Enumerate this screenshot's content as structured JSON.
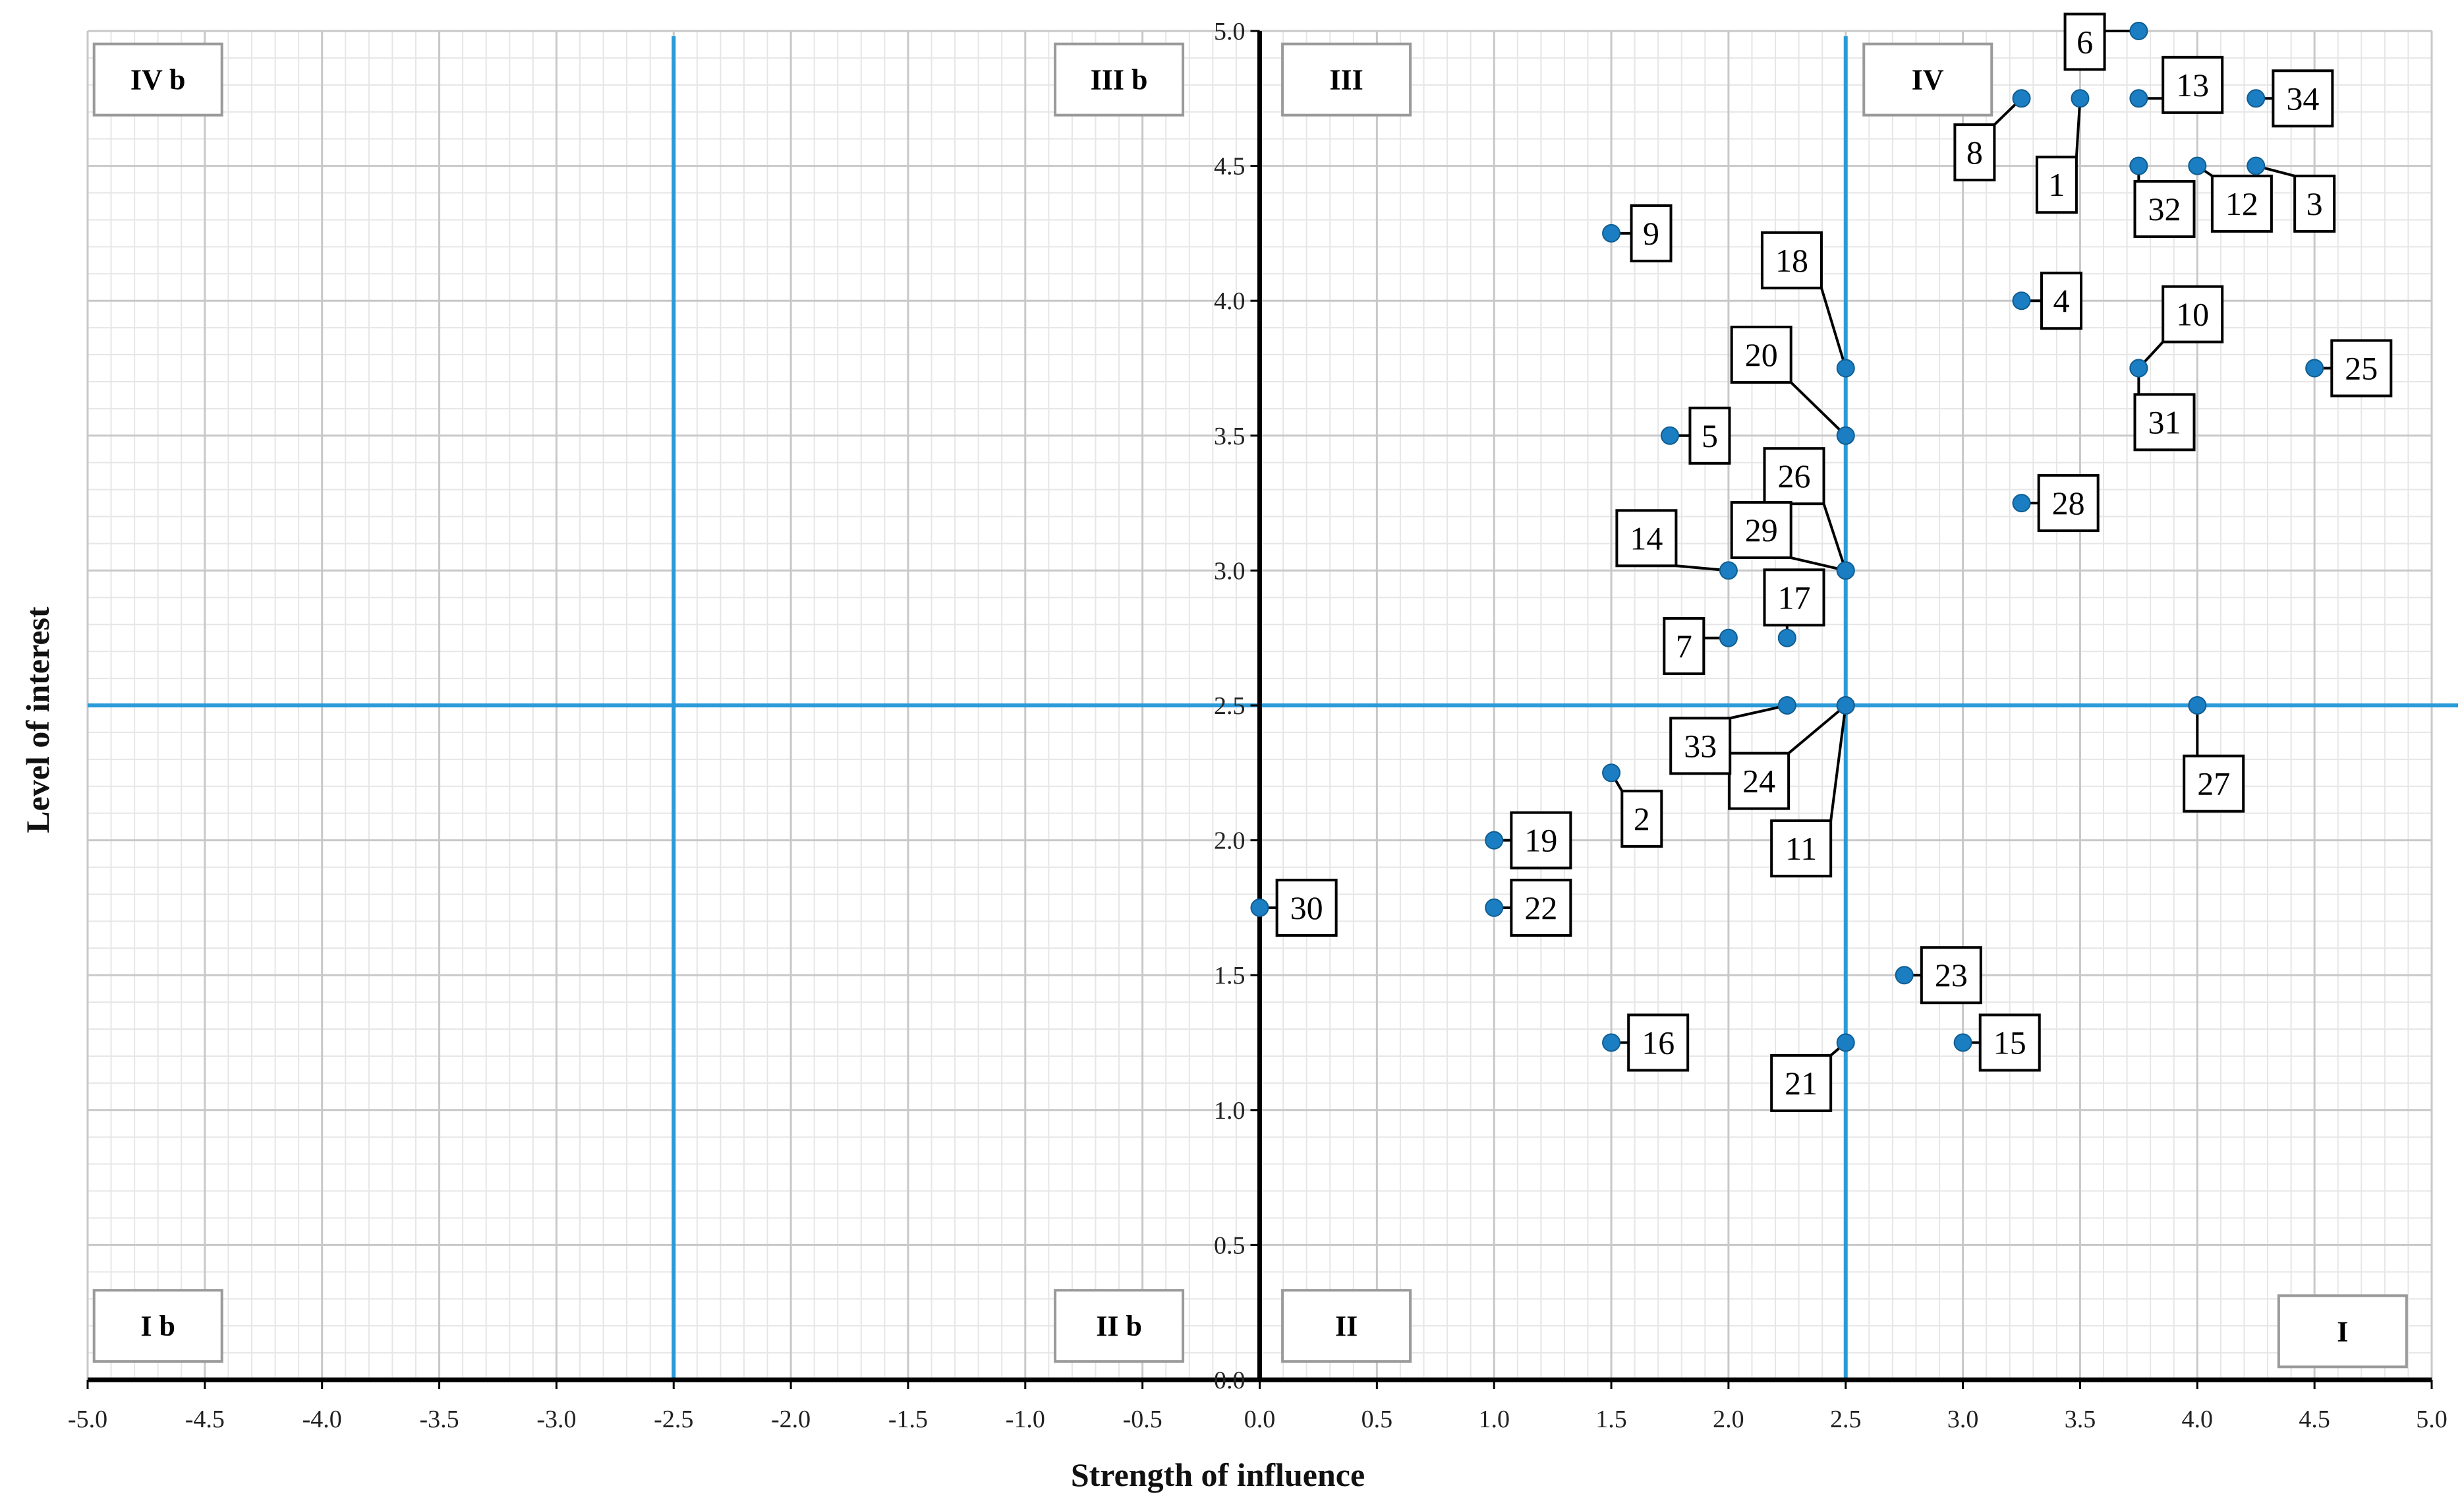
{
  "chart_data": {
    "type": "scatter",
    "xlabel": "Strength of influence",
    "ylabel": "Level of interest",
    "xlim": [
      -5.0,
      5.0
    ],
    "ylim": [
      0.0,
      5.0
    ],
    "x_ticks": [
      "-5.0",
      "-4.5",
      "-4.0",
      "-3.5",
      "-3.0",
      "-2.5",
      "-2.0",
      "-1.5",
      "-1.0",
      "-0.5",
      "0.0",
      "0.5",
      "1.0",
      "1.5",
      "2.0",
      "2.5",
      "3.0",
      "3.5",
      "4.0",
      "4.5",
      "5.0"
    ],
    "y_ticks": [
      "0.0",
      "0.5",
      "1.0",
      "1.5",
      "2.0",
      "2.5",
      "3.0",
      "3.5",
      "4.0",
      "4.5",
      "5.0"
    ],
    "grid": true,
    "reference_lines": {
      "x": [
        -2.5,
        2.5
      ],
      "y": [
        2.5
      ]
    },
    "quadrant_labels": [
      {
        "text": "IV b",
        "x": -4.7,
        "y": 4.82
      },
      {
        "text": "III b",
        "x": -0.6,
        "y": 4.82
      },
      {
        "text": "III",
        "x": 0.37,
        "y": 4.82
      },
      {
        "text": "IV",
        "x": 2.85,
        "y": 4.82
      },
      {
        "text": "I b",
        "x": -4.7,
        "y": 0.2
      },
      {
        "text": "II b",
        "x": -0.6,
        "y": 0.2
      },
      {
        "text": "II",
        "x": 0.37,
        "y": 0.2
      },
      {
        "text": "I",
        "x": 4.62,
        "y": 0.18
      }
    ],
    "points": [
      {
        "label": "1",
        "x": 3.5,
        "y": 4.75,
        "lx": 3.4,
        "ly": 4.43
      },
      {
        "label": "2",
        "x": 1.5,
        "y": 2.25,
        "lx": 1.63,
        "ly": 2.08
      },
      {
        "label": "3",
        "x": 4.25,
        "y": 4.5,
        "lx": 4.5,
        "ly": 4.36
      },
      {
        "label": "4",
        "x": 3.25,
        "y": 4.0,
        "lx": 3.42,
        "ly": 4.0
      },
      {
        "label": "5",
        "x": 1.75,
        "y": 3.5,
        "lx": 1.92,
        "ly": 3.5
      },
      {
        "label": "6",
        "x": 3.75,
        "y": 5.0,
        "lx": 3.52,
        "ly": 4.96
      },
      {
        "label": "7",
        "x": 2.0,
        "y": 2.75,
        "lx": 1.81,
        "ly": 2.72
      },
      {
        "label": "8",
        "x": 3.25,
        "y": 4.75,
        "lx": 3.05,
        "ly": 4.55
      },
      {
        "label": "9",
        "x": 1.5,
        "y": 4.25,
        "lx": 1.67,
        "ly": 4.25
      },
      {
        "label": "10",
        "x": 3.75,
        "y": 3.75,
        "lx": 3.98,
        "ly": 3.95
      },
      {
        "label": "11",
        "x": 2.5,
        "y": 2.5,
        "lx": 2.31,
        "ly": 1.97
      },
      {
        "label": "12",
        "x": 4.0,
        "y": 4.5,
        "lx": 4.19,
        "ly": 4.36
      },
      {
        "label": "13",
        "x": 3.75,
        "y": 4.75,
        "lx": 3.98,
        "ly": 4.8
      },
      {
        "label": "14",
        "x": 2.0,
        "y": 3.0,
        "lx": 1.65,
        "ly": 3.12
      },
      {
        "label": "15",
        "x": 3.0,
        "y": 1.25,
        "lx": 3.2,
        "ly": 1.25
      },
      {
        "label": "16",
        "x": 1.5,
        "y": 1.25,
        "lx": 1.7,
        "ly": 1.25
      },
      {
        "label": "17",
        "x": 2.25,
        "y": 2.75,
        "lx": 2.28,
        "ly": 2.9
      },
      {
        "label": "18",
        "x": 2.5,
        "y": 3.75,
        "lx": 2.27,
        "ly": 4.15
      },
      {
        "label": "19",
        "x": 1.0,
        "y": 2.0,
        "lx": 1.2,
        "ly": 2.0
      },
      {
        "label": "20",
        "x": 2.5,
        "y": 3.5,
        "lx": 2.14,
        "ly": 3.8
      },
      {
        "label": "21",
        "x": 2.5,
        "y": 1.25,
        "lx": 2.31,
        "ly": 1.1
      },
      {
        "label": "22",
        "x": 1.0,
        "y": 1.75,
        "lx": 1.2,
        "ly": 1.75
      },
      {
        "label": "23",
        "x": 2.75,
        "y": 1.5,
        "lx": 2.95,
        "ly": 1.5
      },
      {
        "label": "24",
        "x": 2.5,
        "y": 2.5,
        "lx": 2.13,
        "ly": 2.22
      },
      {
        "label": "25",
        "x": 4.5,
        "y": 3.75,
        "lx": 4.7,
        "ly": 3.75
      },
      {
        "label": "26",
        "x": 2.5,
        "y": 3.0,
        "lx": 2.28,
        "ly": 3.35
      },
      {
        "label": "27",
        "x": 4.0,
        "y": 2.5,
        "lx": 4.07,
        "ly": 2.21
      },
      {
        "label": "28",
        "x": 3.25,
        "y": 3.25,
        "lx": 3.45,
        "ly": 3.25
      },
      {
        "label": "29",
        "x": 2.5,
        "y": 3.0,
        "lx": 2.14,
        "ly": 3.15
      },
      {
        "label": "30",
        "x": 0.0,
        "y": 1.75,
        "lx": 0.2,
        "ly": 1.75
      },
      {
        "label": "31",
        "x": 3.75,
        "y": 3.75,
        "lx": 3.86,
        "ly": 3.55
      },
      {
        "label": "32",
        "x": 3.75,
        "y": 4.5,
        "lx": 3.86,
        "ly": 4.34
      },
      {
        "label": "33",
        "x": 2.25,
        "y": 2.5,
        "lx": 1.88,
        "ly": 2.35
      },
      {
        "label": "34",
        "x": 4.25,
        "y": 4.75,
        "lx": 4.45,
        "ly": 4.75
      }
    ]
  },
  "colors": {
    "point": "#1b7ec2",
    "reference_line": "#2a9ad8",
    "axis": "#000000",
    "grid_major": "#c8c8c8",
    "grid_minor": "#e6e6e6",
    "label_border": "#9a9a9a"
  }
}
